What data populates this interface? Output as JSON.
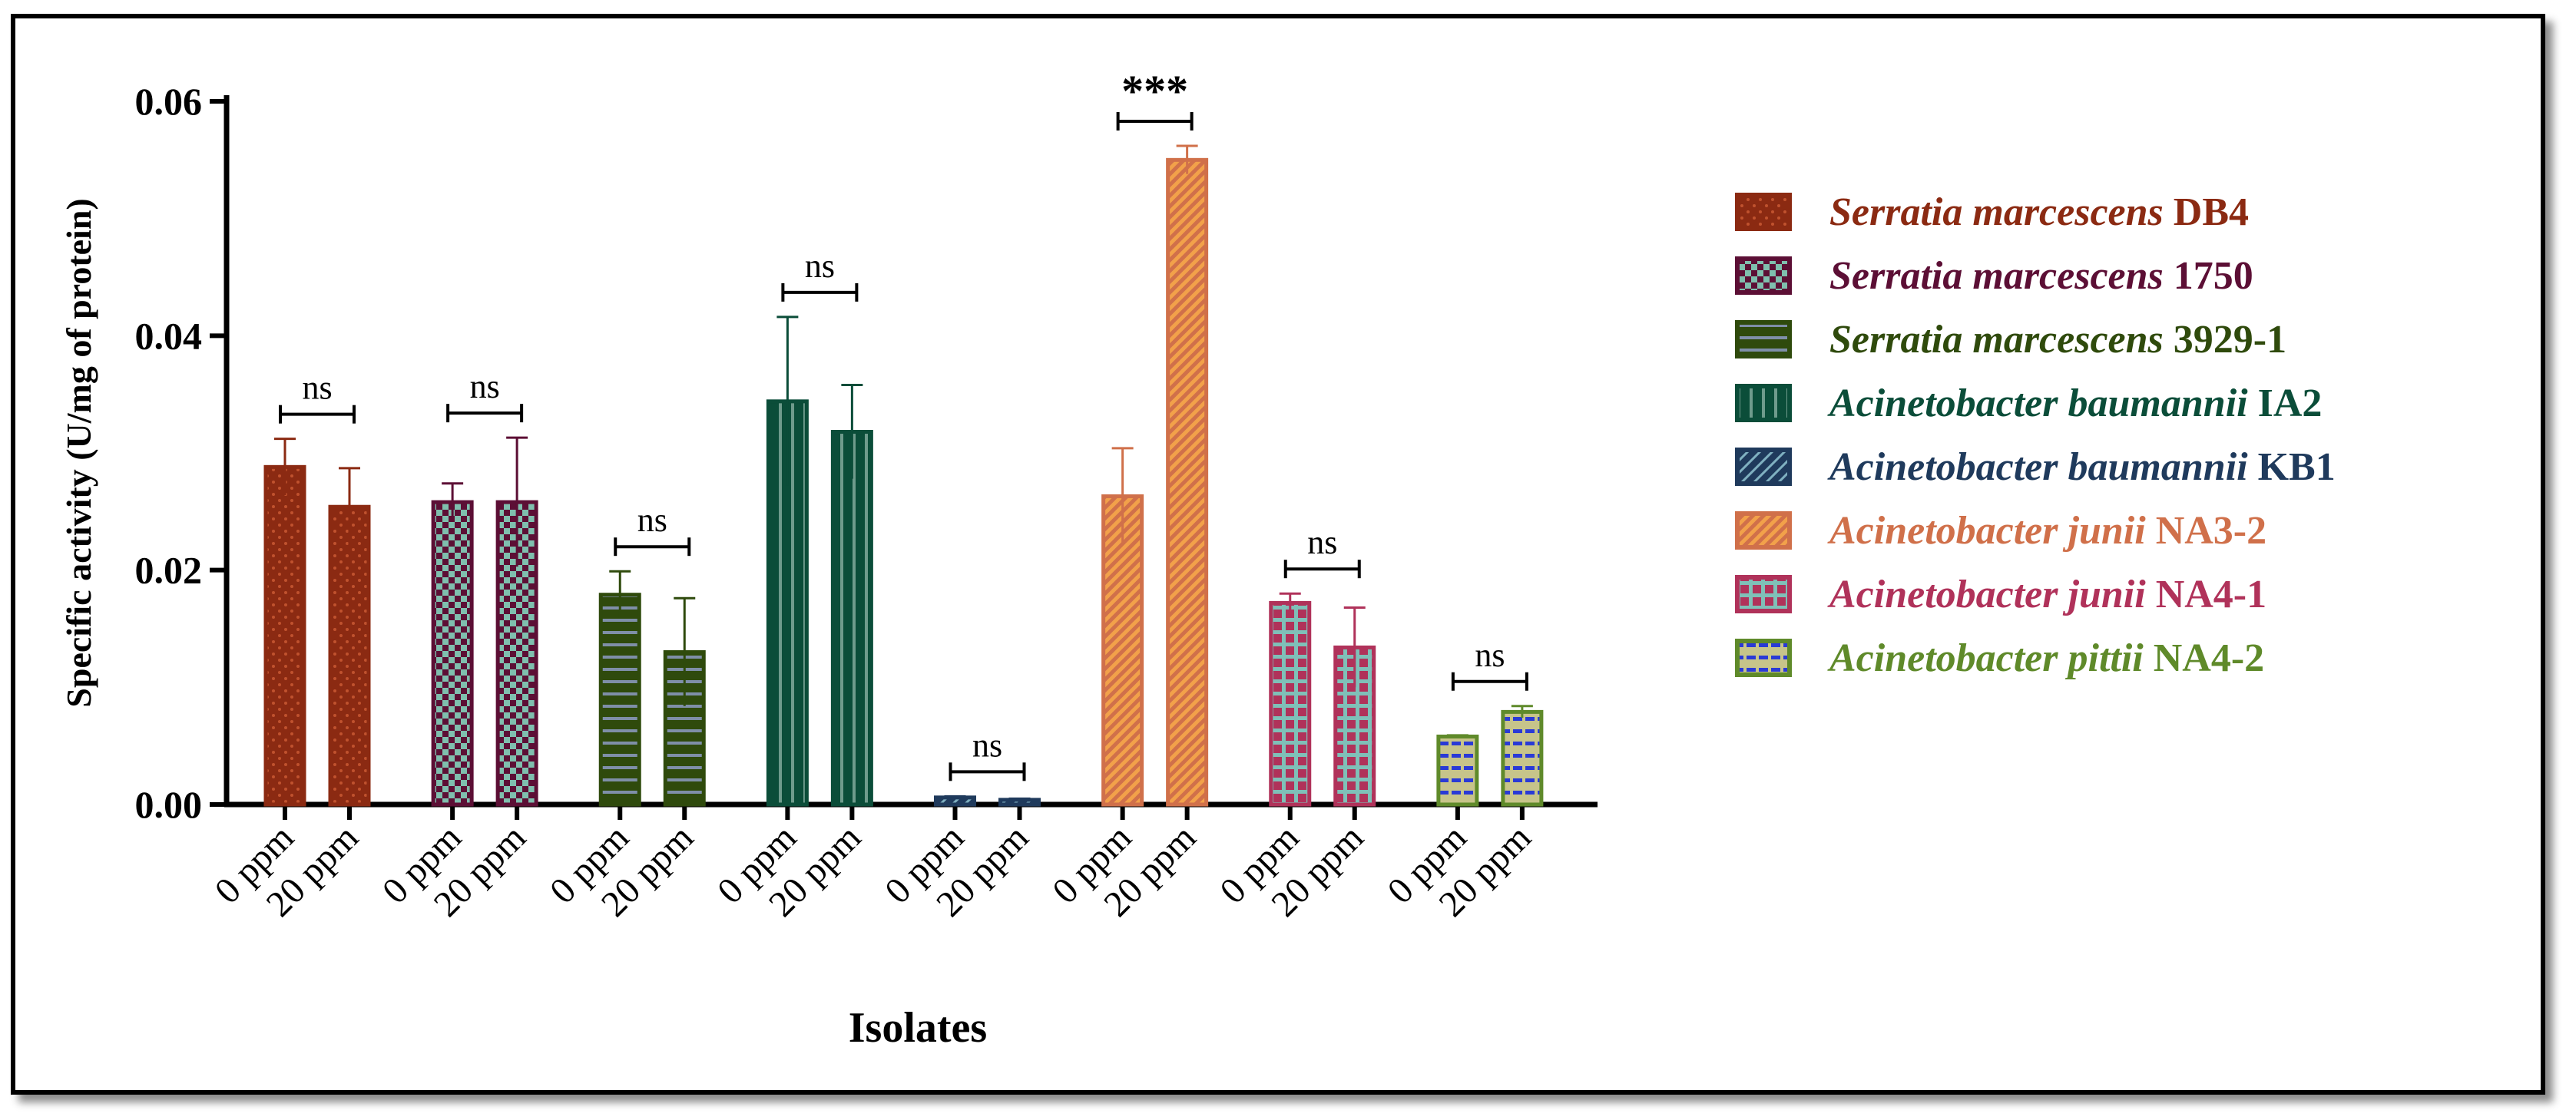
{
  "chart_data": {
    "type": "bar",
    "title": "",
    "xlabel": "Isolates",
    "ylabel": "Specific activity (U/mg of protein)",
    "ylim": [
      0,
      0.06
    ],
    "yticks": [
      "0.00",
      "0.02",
      "0.04",
      "0.06"
    ],
    "categories": [
      "0 ppm",
      "20 ppm"
    ],
    "series": [
      {
        "genus": "Serratia marcescens",
        "strain": "DB4",
        "color": "#8b2a12",
        "fill": "#c0522e",
        "pattern": "dots",
        "values": [
          0.0288,
          0.0254
        ],
        "errors": [
          0.0024,
          0.0033
        ],
        "sig": "ns"
      },
      {
        "genus": "Serratia marcescens",
        "strain": "1750",
        "color": "#5c0f35",
        "fill": "#7fbfae",
        "pattern": "checker",
        "values": [
          0.0258,
          0.0258
        ],
        "errors": [
          0.0016,
          0.0055
        ],
        "sig": "ns"
      },
      {
        "genus": "Serratia marcescens",
        "strain": "3929-1",
        "color": "#2f4a0c",
        "fill": "#7f8fa8",
        "pattern": "hlines",
        "values": [
          0.0179,
          0.013
        ],
        "errors": [
          0.002,
          0.0046
        ],
        "sig": "ns"
      },
      {
        "genus": "Acinetobacter baumannii",
        "strain": "IA2",
        "color": "#0b4d39",
        "fill": "#6f9b8c",
        "pattern": "vlines",
        "values": [
          0.0344,
          0.0318
        ],
        "errors": [
          0.0072,
          0.004
        ],
        "sig": "ns"
      },
      {
        "genus": "Acinetobacter baumannii",
        "strain": "KB1",
        "color": "#1f3a5c",
        "fill": "#7fb0c0",
        "pattern": "diag",
        "values": [
          0.0006,
          0.0004
        ],
        "errors": [
          0.0001,
          0.0001
        ],
        "sig": "ns"
      },
      {
        "genus": "Acinetobacter junii",
        "strain": "NA3-2",
        "color": "#d0704a",
        "fill": "#f2a14a",
        "pattern": "diag-stripe",
        "values": [
          0.0263,
          0.055
        ],
        "errors": [
          0.0041,
          0.0012
        ],
        "sig": "***"
      },
      {
        "genus": "Acinetobacter junii",
        "strain": "NA4-1",
        "color": "#b0325a",
        "fill": "#7fc0b8",
        "pattern": "grid",
        "values": [
          0.0172,
          0.0134
        ],
        "errors": [
          0.0008,
          0.0034
        ],
        "sig": "ns"
      },
      {
        "genus": "Acinetobacter pittii",
        "strain": "NA4-2",
        "color": "#5f8a2a",
        "fill": "#c7c48a",
        "pattern": "blue-dash",
        "values": [
          0.0058,
          0.0079
        ],
        "errors": [
          0.0001,
          0.0005
        ],
        "sig": "ns"
      }
    ],
    "legend_position": "right"
  }
}
